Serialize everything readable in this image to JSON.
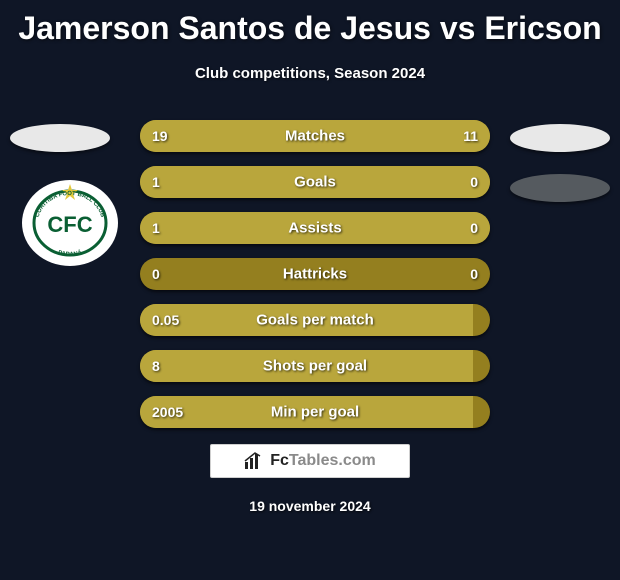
{
  "title": "Jamerson Santos de Jesus vs Ericson",
  "subtitle": "Club competitions, Season 2024",
  "date": "19 november 2024",
  "logo": {
    "brand": "Fc",
    "rest": "Tables.com"
  },
  "colors": {
    "background": "#0f1626",
    "bar_track": "#947f1f",
    "bar_fill": "#b9a63c",
    "text": "#ffffff"
  },
  "rows": [
    {
      "label": "Matches",
      "left": "19",
      "right": "11",
      "left_pct": 63,
      "right_pct": 37
    },
    {
      "label": "Goals",
      "left": "1",
      "right": "0",
      "left_pct": 75,
      "right_pct": 25
    },
    {
      "label": "Assists",
      "left": "1",
      "right": "0",
      "left_pct": 75,
      "right_pct": 25
    },
    {
      "label": "Hattricks",
      "left": "0",
      "right": "0",
      "left_pct": 0,
      "right_pct": 0
    },
    {
      "label": "Goals per match",
      "left": "0.05",
      "right": "",
      "left_pct": 95,
      "right_pct": 0
    },
    {
      "label": "Shots per goal",
      "left": "8",
      "right": "",
      "left_pct": 95,
      "right_pct": 0
    },
    {
      "label": "Min per goal",
      "left": "2005",
      "right": "",
      "left_pct": 95,
      "right_pct": 0
    }
  ]
}
